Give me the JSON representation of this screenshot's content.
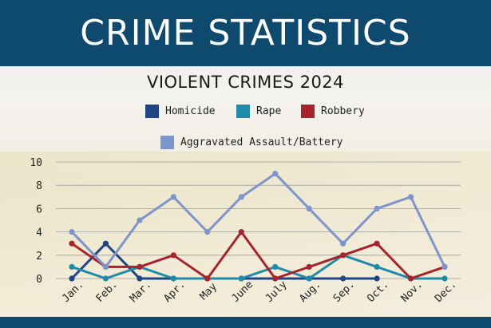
{
  "header": {
    "title": "CRIME STATISTICS"
  },
  "chart_data": {
    "type": "line",
    "title": "VIOLENT CRIMES 2024",
    "xlabel": "",
    "ylabel": "",
    "categories": [
      "Jan.",
      "Feb.",
      "Mar.",
      "Apr.",
      "May",
      "June",
      "July",
      "Aug.",
      "Sep.",
      "Oct.",
      "Nov.",
      "Dec."
    ],
    "ylim": [
      0,
      10
    ],
    "yticks": [
      "0",
      "2",
      "4",
      "6",
      "8",
      "10"
    ],
    "grid": true,
    "legend_position": "top",
    "series": [
      {
        "name": "Homicide",
        "color": "#1d4687",
        "values": [
          0,
          3,
          0,
          0,
          0,
          0,
          0,
          0,
          0,
          0,
          null,
          null
        ]
      },
      {
        "name": "Rape",
        "color": "#1e8ca8",
        "values": [
          1,
          0,
          1,
          0,
          0,
          0,
          1,
          0,
          2,
          1,
          0,
          0
        ]
      },
      {
        "name": "Robbery",
        "color": "#a8232b",
        "values": [
          3,
          1,
          1,
          2,
          0,
          4,
          0,
          1,
          2,
          3,
          0,
          1
        ]
      },
      {
        "name": "Aggravated Assault/Battery",
        "color": "#7e95cc",
        "values": [
          4,
          1,
          5,
          7,
          4,
          7,
          9,
          6,
          3,
          6,
          7,
          1
        ]
      }
    ]
  }
}
